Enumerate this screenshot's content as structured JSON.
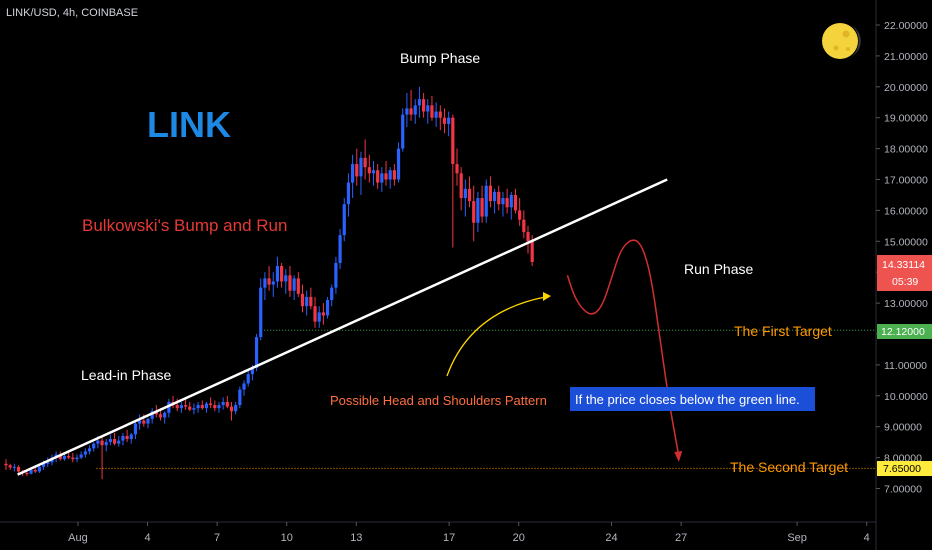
{
  "symbol": "LINK/USD, 4h, COINBASE",
  "colors": {
    "background": "#000000",
    "up": "#2962ff",
    "down": "#f23645",
    "trendline": "#ffffff",
    "green_line": "#4caf50",
    "orange_line": "#ff9800",
    "current_price": "#ef5350",
    "axis_text": "#b2b5be",
    "moon": "#f5d33c"
  },
  "chart_data": {
    "type": "candlestick",
    "title": "LINK",
    "subtitle": "Bulkowski's Bump and Run",
    "ylim": [
      6.3,
      22.7
    ],
    "y_ticks": [
      "7.00000",
      "8.00000",
      "9.00000",
      "10.00000",
      "11.00000",
      "12.00000",
      "13.00000",
      "14.00000",
      "15.00000",
      "16.00000",
      "17.00000",
      "18.00000",
      "19.00000",
      "20.00000",
      "21.00000",
      "22.00000"
    ],
    "x_ticks": [
      "Aug",
      "4",
      "7",
      "10",
      "13",
      "17",
      "20",
      "24",
      "27",
      "Sep",
      "4"
    ],
    "price_labels": {
      "current_price": "14.33114",
      "countdown": "05:39",
      "first_target_price": "12.12000",
      "second_target_price": "7.65000"
    },
    "annotations": {
      "bump_phase": "Bump Phase",
      "run_phase": "Run Phase",
      "lead_in_phase": "Lead-in Phase",
      "first_target": "The First Target",
      "second_target": "The Second Target",
      "pattern": "Possible Head and Shoulders Pattern",
      "note": "If the price closes below the green line."
    },
    "levels": {
      "first_target": 12.12,
      "second_target": 7.65
    },
    "trendline": {
      "start": [
        0.5,
        7.45
      ],
      "end": [
        28.5,
        17.0
      ]
    },
    "projection": [
      [
        24.2,
        13.9
      ],
      [
        24.5,
        13.2
      ],
      [
        24.9,
        12.75
      ],
      [
        25.3,
        12.6
      ],
      [
        25.7,
        12.9
      ],
      [
        26.1,
        13.8
      ],
      [
        26.5,
        14.75
      ],
      [
        27.0,
        15.1
      ],
      [
        27.4,
        14.9
      ],
      [
        27.8,
        13.9
      ],
      [
        28.2,
        11.8
      ],
      [
        28.6,
        9.7
      ],
      [
        29.0,
        8.05
      ]
    ],
    "candles_ohlc": [
      [
        0.0,
        7.8,
        7.95,
        7.6,
        7.75
      ],
      [
        0.18,
        7.75,
        7.8,
        7.6,
        7.68
      ],
      [
        0.36,
        7.68,
        7.8,
        7.55,
        7.7
      ],
      [
        0.54,
        7.7,
        7.75,
        7.5,
        7.55
      ],
      [
        0.72,
        7.55,
        7.6,
        7.4,
        7.5
      ],
      [
        0.9,
        7.5,
        7.6,
        7.4,
        7.48
      ],
      [
        1.08,
        7.48,
        7.7,
        7.45,
        7.6
      ],
      [
        1.26,
        7.6,
        7.7,
        7.5,
        7.55
      ],
      [
        1.44,
        7.55,
        7.75,
        7.5,
        7.7
      ],
      [
        1.62,
        7.7,
        7.9,
        7.6,
        7.8
      ],
      [
        1.8,
        7.8,
        8.0,
        7.7,
        7.85
      ],
      [
        1.98,
        7.85,
        8.1,
        7.75,
        8.0
      ],
      [
        2.16,
        8.0,
        8.2,
        7.85,
        8.1
      ],
      [
        2.34,
        8.1,
        8.2,
        7.9,
        7.95
      ],
      [
        2.52,
        7.95,
        8.15,
        7.9,
        8.05
      ],
      [
        2.7,
        8.05,
        8.2,
        7.95,
        8.0
      ],
      [
        2.88,
        8.0,
        8.15,
        7.85,
        7.95
      ],
      [
        3.06,
        7.95,
        8.1,
        7.85,
        8.0
      ],
      [
        3.24,
        8.0,
        8.2,
        7.95,
        8.1
      ],
      [
        3.42,
        8.1,
        8.3,
        8.0,
        8.2
      ],
      [
        3.6,
        8.2,
        8.4,
        8.1,
        8.3
      ],
      [
        3.78,
        8.3,
        8.5,
        8.2,
        8.45
      ],
      [
        3.96,
        8.45,
        8.7,
        8.3,
        8.55
      ],
      [
        4.14,
        8.55,
        8.7,
        7.3,
        8.4
      ],
      [
        4.32,
        8.4,
        8.6,
        8.2,
        8.5
      ],
      [
        4.5,
        8.5,
        8.75,
        8.4,
        8.6
      ],
      [
        4.68,
        8.6,
        8.8,
        8.4,
        8.45
      ],
      [
        4.86,
        8.45,
        8.7,
        8.35,
        8.55
      ],
      [
        5.04,
        8.55,
        8.8,
        8.4,
        8.7
      ],
      [
        5.22,
        8.7,
        8.9,
        8.5,
        8.6
      ],
      [
        5.4,
        8.6,
        8.8,
        8.45,
        8.75
      ],
      [
        5.58,
        8.75,
        9.2,
        8.6,
        9.1
      ],
      [
        5.76,
        9.1,
        9.4,
        8.9,
        9.2
      ],
      [
        5.94,
        9.2,
        9.4,
        9.0,
        9.1
      ],
      [
        6.12,
        9.1,
        9.3,
        8.95,
        9.25
      ],
      [
        6.3,
        9.25,
        9.6,
        9.1,
        9.5
      ],
      [
        6.48,
        9.5,
        9.7,
        9.3,
        9.4
      ],
      [
        6.66,
        9.4,
        9.6,
        9.2,
        9.3
      ],
      [
        6.84,
        9.3,
        9.5,
        9.1,
        9.45
      ],
      [
        7.02,
        9.45,
        9.9,
        9.3,
        9.8
      ],
      [
        7.2,
        9.8,
        10.0,
        9.6,
        9.7
      ],
      [
        7.38,
        9.7,
        9.9,
        9.5,
        9.6
      ],
      [
        7.56,
        9.6,
        9.8,
        9.45,
        9.7
      ],
      [
        7.74,
        9.7,
        9.9,
        9.55,
        9.65
      ],
      [
        7.92,
        9.65,
        9.8,
        9.5,
        9.55
      ],
      [
        8.1,
        9.55,
        9.75,
        9.4,
        9.6
      ],
      [
        8.28,
        9.6,
        9.8,
        9.45,
        9.7
      ],
      [
        8.46,
        9.7,
        9.85,
        9.55,
        9.6
      ],
      [
        8.64,
        9.6,
        9.8,
        9.45,
        9.75
      ],
      [
        8.82,
        9.75,
        9.95,
        9.6,
        9.7
      ],
      [
        9.0,
        9.7,
        9.85,
        9.5,
        9.6
      ],
      [
        9.18,
        9.6,
        9.8,
        9.45,
        9.7
      ],
      [
        9.36,
        9.7,
        9.95,
        9.55,
        9.8
      ],
      [
        9.54,
        9.8,
        10.0,
        9.6,
        9.65
      ],
      [
        9.72,
        9.65,
        9.8,
        9.2,
        9.5
      ],
      [
        9.9,
        9.5,
        9.8,
        9.4,
        9.7
      ],
      [
        10.08,
        9.7,
        10.3,
        9.6,
        10.2
      ],
      [
        10.26,
        10.2,
        10.5,
        10.0,
        10.4
      ],
      [
        10.44,
        10.4,
        10.8,
        10.3,
        10.7
      ],
      [
        10.62,
        10.7,
        11.0,
        10.5,
        10.9
      ],
      [
        10.8,
        10.9,
        12.0,
        10.8,
        11.9
      ],
      [
        10.98,
        11.9,
        13.8,
        11.8,
        13.5
      ],
      [
        11.16,
        13.5,
        14.0,
        13.1,
        13.8
      ],
      [
        11.34,
        13.8,
        14.2,
        13.4,
        13.6
      ],
      [
        11.52,
        13.6,
        14.0,
        13.2,
        13.7
      ],
      [
        11.7,
        13.7,
        14.5,
        13.5,
        14.2
      ],
      [
        11.88,
        14.2,
        14.3,
        13.5,
        13.7
      ],
      [
        12.06,
        13.7,
        14.1,
        13.3,
        13.9
      ],
      [
        12.24,
        13.9,
        14.2,
        13.2,
        13.4
      ],
      [
        12.42,
        13.4,
        13.9,
        13.1,
        13.8
      ],
      [
        12.6,
        13.8,
        14.0,
        13.2,
        13.3
      ],
      [
        12.78,
        13.3,
        13.6,
        12.7,
        12.9
      ],
      [
        12.96,
        12.9,
        13.4,
        12.6,
        13.2
      ],
      [
        13.14,
        13.2,
        13.5,
        12.8,
        12.9
      ],
      [
        13.32,
        12.9,
        13.2,
        12.2,
        12.4
      ],
      [
        13.5,
        12.4,
        12.9,
        12.2,
        12.7
      ],
      [
        13.68,
        12.7,
        13.0,
        12.3,
        12.6
      ],
      [
        13.86,
        12.6,
        13.2,
        12.5,
        13.1
      ],
      [
        14.04,
        13.1,
        13.6,
        12.9,
        13.5
      ],
      [
        14.22,
        13.5,
        14.5,
        13.3,
        14.3
      ],
      [
        14.4,
        14.3,
        15.4,
        14.1,
        15.2
      ],
      [
        14.58,
        15.2,
        16.4,
        15.0,
        16.2
      ],
      [
        14.76,
        16.2,
        17.2,
        15.8,
        16.9
      ],
      [
        14.94,
        16.9,
        17.8,
        16.4,
        17.5
      ],
      [
        15.12,
        17.5,
        18.0,
        16.8,
        17.1
      ],
      [
        15.3,
        17.1,
        17.9,
        16.5,
        17.7
      ],
      [
        15.48,
        17.7,
        18.3,
        17.0,
        17.4
      ],
      [
        15.66,
        17.4,
        17.8,
        16.9,
        17.2
      ],
      [
        15.84,
        17.2,
        17.6,
        16.8,
        17.3
      ],
      [
        16.02,
        17.3,
        17.5,
        16.7,
        16.9
      ],
      [
        16.2,
        16.9,
        17.4,
        16.6,
        17.2
      ],
      [
        16.38,
        17.2,
        17.6,
        16.8,
        17.0
      ],
      [
        16.56,
        17.0,
        17.4,
        16.7,
        17.3
      ],
      [
        16.74,
        17.3,
        17.5,
        16.8,
        17.0
      ],
      [
        16.92,
        17.0,
        18.2,
        16.9,
        18.0
      ],
      [
        17.1,
        18.0,
        19.3,
        17.9,
        19.1
      ],
      [
        17.28,
        19.1,
        19.8,
        18.7,
        19.3
      ],
      [
        17.46,
        19.3,
        19.9,
        18.9,
        19.1
      ],
      [
        17.64,
        19.1,
        19.6,
        18.8,
        19.4
      ],
      [
        17.82,
        19.4,
        20.0,
        19.0,
        19.6
      ],
      [
        18.0,
        19.6,
        19.8,
        19.0,
        19.2
      ],
      [
        18.18,
        19.2,
        19.6,
        18.8,
        19.4
      ],
      [
        18.36,
        19.4,
        19.7,
        18.9,
        19.0
      ],
      [
        18.54,
        19.0,
        19.5,
        18.7,
        19.2
      ],
      [
        18.72,
        19.2,
        19.4,
        18.6,
        19.0
      ],
      [
        18.9,
        19.0,
        19.3,
        18.5,
        18.8
      ],
      [
        19.08,
        18.8,
        19.2,
        18.4,
        19.0
      ],
      [
        19.26,
        19.0,
        19.1,
        14.8,
        17.5
      ],
      [
        19.44,
        17.5,
        18.0,
        16.8,
        17.2
      ],
      [
        19.62,
        17.2,
        17.4,
        16.0,
        16.4
      ],
      [
        19.8,
        16.4,
        17.0,
        15.8,
        16.7
      ],
      [
        19.98,
        16.7,
        17.1,
        16.1,
        16.3
      ],
      [
        20.16,
        16.3,
        16.8,
        15.0,
        15.6
      ],
      [
        20.34,
        15.6,
        16.6,
        15.3,
        16.4
      ],
      [
        20.52,
        16.4,
        16.8,
        15.6,
        15.8
      ],
      [
        20.7,
        15.8,
        17.0,
        15.6,
        16.8
      ],
      [
        20.88,
        16.8,
        17.1,
        16.1,
        16.3
      ],
      [
        21.06,
        16.3,
        16.7,
        15.9,
        16.6
      ],
      [
        21.24,
        16.6,
        16.8,
        16.0,
        16.2
      ],
      [
        21.42,
        16.2,
        16.6,
        15.8,
        16.4
      ],
      [
        21.6,
        16.4,
        16.7,
        15.9,
        16.1
      ],
      [
        21.78,
        16.1,
        16.6,
        15.7,
        16.5
      ],
      [
        21.96,
        16.5,
        16.7,
        15.9,
        16.0
      ],
      [
        22.14,
        16.0,
        16.4,
        15.5,
        15.7
      ],
      [
        22.32,
        15.7,
        16.0,
        15.1,
        15.3
      ],
      [
        22.5,
        15.3,
        15.5,
        14.6,
        15.0
      ],
      [
        22.68,
        15.0,
        15.2,
        14.2,
        14.33
      ]
    ]
  }
}
